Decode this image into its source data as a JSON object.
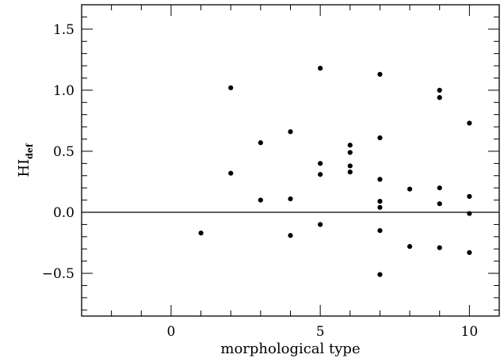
{
  "chart_data": {
    "type": "scatter",
    "title": "",
    "xlabel": "morphological type",
    "ylabel": {
      "main": "HI",
      "subscript": "def"
    },
    "xlim": [
      -3,
      11
    ],
    "ylim": [
      -0.85,
      1.7
    ],
    "x_major_ticks": [
      0,
      5,
      10
    ],
    "x_minor_step": 1,
    "y_major_ticks": [
      -0.5,
      0.0,
      0.5,
      1.0,
      1.5
    ],
    "y_minor_step": 0.1,
    "x_tick_labels": [
      "0",
      "5",
      "10"
    ],
    "y_tick_labels": [
      "−0.5",
      "0.0",
      "0.5",
      "1.0",
      "1.5"
    ],
    "grid": false,
    "reference_line": {
      "y": 0
    },
    "marker_color": "#000000",
    "points": [
      {
        "x": 1,
        "y": -0.17
      },
      {
        "x": 2,
        "y": 1.02
      },
      {
        "x": 2,
        "y": 0.32
      },
      {
        "x": 3,
        "y": 0.57
      },
      {
        "x": 3,
        "y": 0.1
      },
      {
        "x": 4,
        "y": 0.66
      },
      {
        "x": 4,
        "y": 0.11
      },
      {
        "x": 4,
        "y": -0.19
      },
      {
        "x": 5,
        "y": 1.18
      },
      {
        "x": 5,
        "y": 0.4
      },
      {
        "x": 5,
        "y": 0.31
      },
      {
        "x": 5,
        "y": -0.1
      },
      {
        "x": 6,
        "y": 0.55
      },
      {
        "x": 6,
        "y": 0.49
      },
      {
        "x": 6,
        "y": 0.38
      },
      {
        "x": 6,
        "y": 0.33
      },
      {
        "x": 7,
        "y": 1.13
      },
      {
        "x": 7,
        "y": 0.61
      },
      {
        "x": 7,
        "y": 0.27
      },
      {
        "x": 7,
        "y": 0.09
      },
      {
        "x": 7,
        "y": 0.04
      },
      {
        "x": 7,
        "y": -0.15
      },
      {
        "x": 7,
        "y": -0.51
      },
      {
        "x": 8,
        "y": 0.19
      },
      {
        "x": 8,
        "y": -0.28
      },
      {
        "x": 9,
        "y": 1.0
      },
      {
        "x": 9,
        "y": 0.94
      },
      {
        "x": 9,
        "y": 0.2
      },
      {
        "x": 9,
        "y": 0.07
      },
      {
        "x": 9,
        "y": -0.29
      },
      {
        "x": 10,
        "y": 0.73
      },
      {
        "x": 10,
        "y": 0.13
      },
      {
        "x": 10,
        "y": -0.01
      },
      {
        "x": 10,
        "y": -0.33
      }
    ]
  }
}
